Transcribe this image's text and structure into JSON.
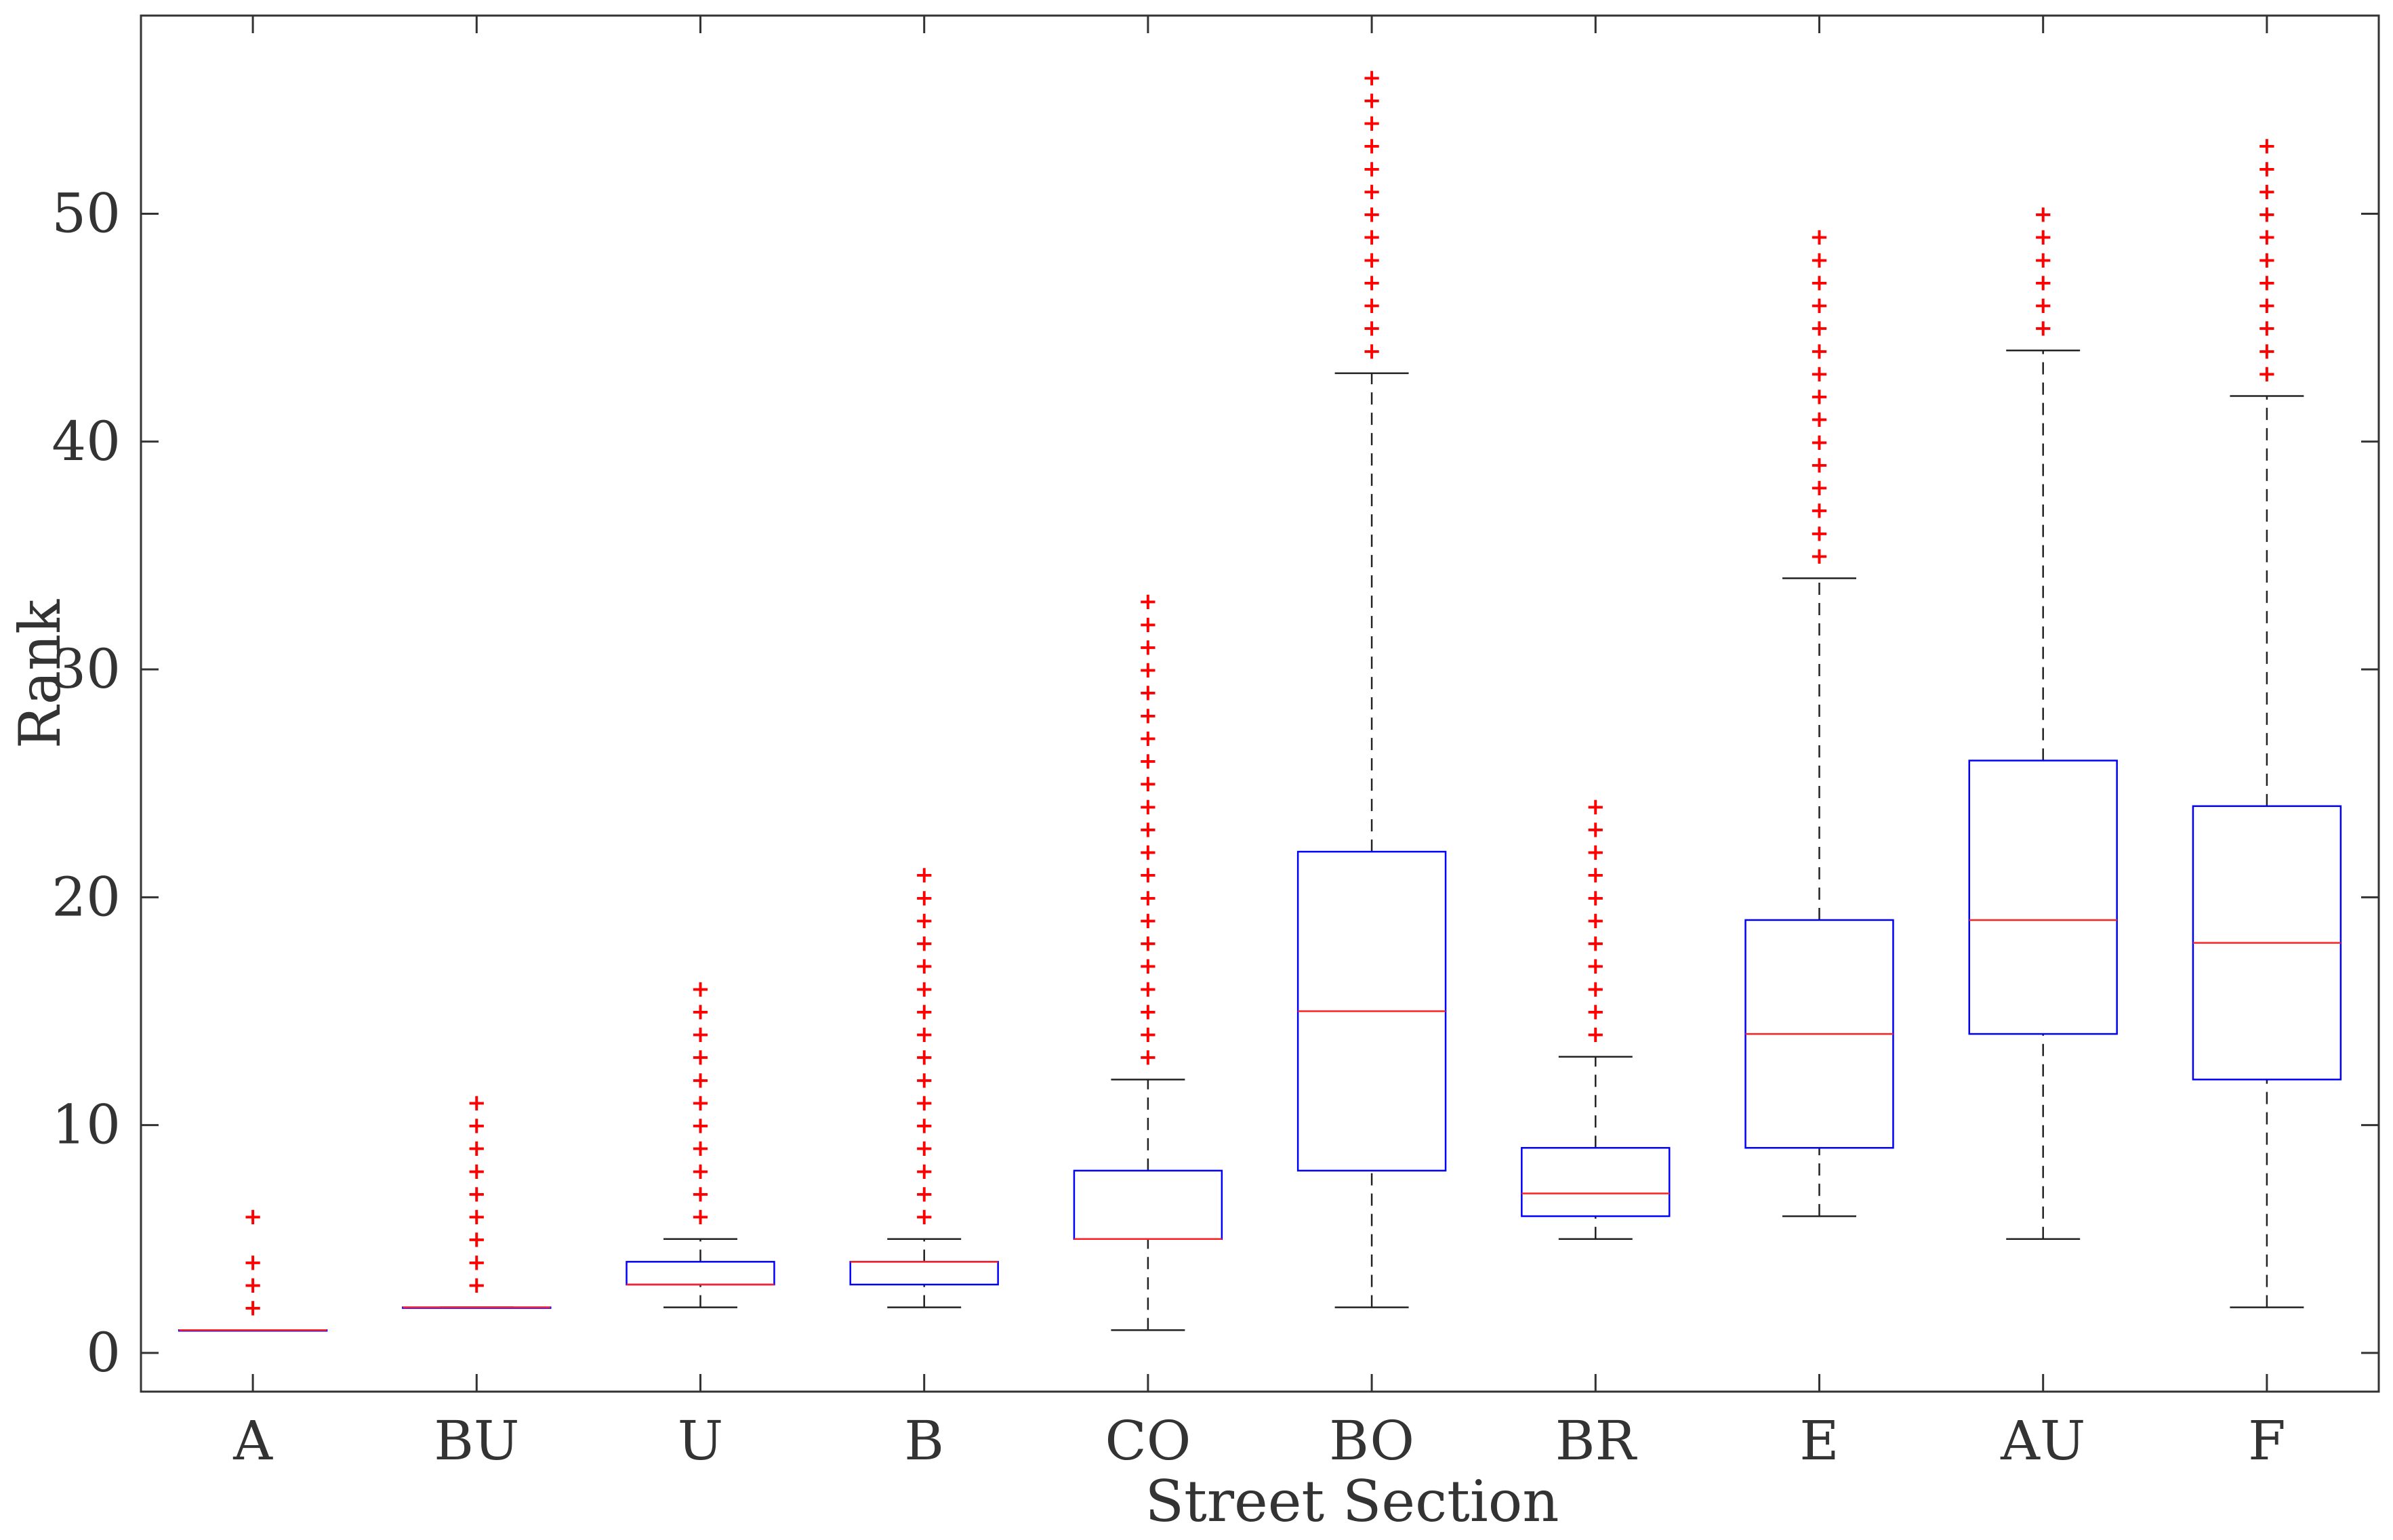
{
  "chart_data": {
    "type": "boxplot",
    "title": "",
    "xlabel": "Street Section",
    "ylabel": "Rank",
    "ylim": [
      -1.7,
      58.7
    ],
    "yticks": [
      0,
      10,
      20,
      30,
      40,
      50
    ],
    "grid": false,
    "colors": {
      "box": "#0000ff",
      "median": "#ff0000",
      "whisker": "#000000",
      "outlier": "#ff0000"
    },
    "categories": [
      "A",
      "BU",
      "U",
      "B",
      "CO",
      "BO",
      "BR",
      "E",
      "AU",
      "F"
    ],
    "boxes": [
      {
        "category": "A",
        "whisker_low": 1,
        "q1": 1,
        "median": 1,
        "q3": 1,
        "whisker_high": 1,
        "outliers": [
          2,
          3,
          4,
          6
        ]
      },
      {
        "category": "BU",
        "whisker_low": 2,
        "q1": 2,
        "median": 2,
        "q3": 2,
        "whisker_high": 2,
        "outliers": [
          3,
          4,
          5,
          6,
          7,
          8,
          9,
          10,
          11
        ]
      },
      {
        "category": "U",
        "whisker_low": 2,
        "q1": 3,
        "median": 3,
        "q3": 4,
        "whisker_high": 5,
        "outliers": [
          6,
          7,
          8,
          9,
          10,
          11,
          12,
          13,
          14,
          15,
          16
        ]
      },
      {
        "category": "B",
        "whisker_low": 2,
        "q1": 3,
        "median": 4,
        "q3": 4,
        "whisker_high": 5,
        "outliers": [
          6,
          7,
          8,
          9,
          10,
          11,
          12,
          13,
          14,
          15,
          16,
          17,
          18,
          19,
          20,
          21
        ]
      },
      {
        "category": "CO",
        "whisker_low": 1,
        "q1": 5,
        "median": 5,
        "q3": 8,
        "whisker_high": 12,
        "outliers": [
          13,
          14,
          15,
          16,
          17,
          18,
          19,
          20,
          21,
          22,
          23,
          24,
          25,
          26,
          27,
          28,
          29,
          30,
          31,
          32,
          33
        ]
      },
      {
        "category": "BO",
        "whisker_low": 2,
        "q1": 8,
        "median": 15,
        "q3": 22,
        "whisker_high": 43,
        "outliers": [
          44,
          45,
          46,
          47,
          48,
          49,
          50,
          51,
          52,
          53,
          54,
          55,
          56
        ]
      },
      {
        "category": "BR",
        "whisker_low": 5,
        "q1": 6,
        "median": 7,
        "q3": 9,
        "whisker_high": 13,
        "outliers": [
          14,
          15,
          16,
          17,
          18,
          19,
          20,
          21,
          22,
          23,
          24
        ]
      },
      {
        "category": "E",
        "whisker_low": 6,
        "q1": 9,
        "median": 14,
        "q3": 19,
        "whisker_high": 34,
        "outliers": [
          35,
          36,
          37,
          38,
          39,
          40,
          41,
          42,
          43,
          44,
          45,
          46,
          47,
          48,
          49
        ]
      },
      {
        "category": "AU",
        "whisker_low": 5,
        "q1": 14,
        "median": 19,
        "q3": 26,
        "whisker_high": 44,
        "outliers": [
          45,
          46,
          47,
          48,
          49,
          50
        ]
      },
      {
        "category": "F",
        "whisker_low": 2,
        "q1": 12,
        "median": 18,
        "q3": 24,
        "whisker_high": 42,
        "outliers": [
          43,
          44,
          45,
          46,
          47,
          48,
          49,
          50,
          51,
          52,
          53
        ]
      }
    ]
  }
}
